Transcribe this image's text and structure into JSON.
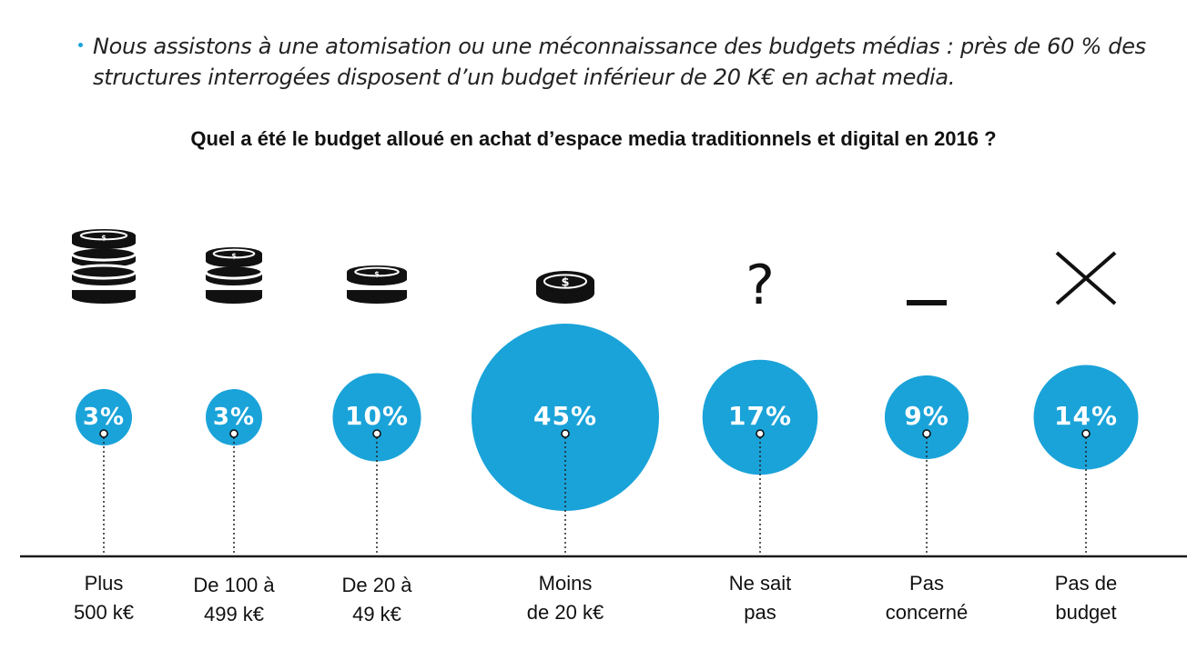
{
  "intro": {
    "text": "Nous assistons à une atomisation ou une méconnaissance des budgets médias : près de 60 % des structures interrogées disposent d’un budget inférieur de 20 K€ en achat media."
  },
  "colors": {
    "accent": "#1aa3d9",
    "icon": "#111111",
    "axis": "#1a1a1a"
  },
  "chart_data": {
    "type": "bubble",
    "title": "Quel a été le budget alloué en achat d’espace media traditionnels et digital en 2016 ?",
    "unit": "%",
    "categories": [
      {
        "label_lines": [
          "Plus",
          "500 k€"
        ],
        "value": 3,
        "value_label": "3%",
        "icon": "coin-stack-4-icon"
      },
      {
        "label_lines": [
          "De 100 à",
          "499 k€"
        ],
        "value": 3,
        "value_label": "3%",
        "icon": "coin-stack-3-icon"
      },
      {
        "label_lines": [
          "De 20 à",
          "49 k€"
        ],
        "value": 10,
        "value_label": "10%",
        "icon": "coin-stack-2-icon"
      },
      {
        "label_lines": [
          "Moins",
          "de 20 k€"
        ],
        "value": 45,
        "value_label": "45%",
        "icon": "coin-icon"
      },
      {
        "label_lines": [
          "Ne sait",
          "pas"
        ],
        "value": 17,
        "value_label": "17%",
        "icon": "question-mark-icon"
      },
      {
        "label_lines": [
          "Pas",
          "concerné"
        ],
        "value": 9,
        "value_label": "9%",
        "icon": "dash-icon"
      },
      {
        "label_lines": [
          "Pas de",
          "budget"
        ],
        "value": 14,
        "value_label": "14%",
        "icon": "cross-icon"
      }
    ]
  }
}
